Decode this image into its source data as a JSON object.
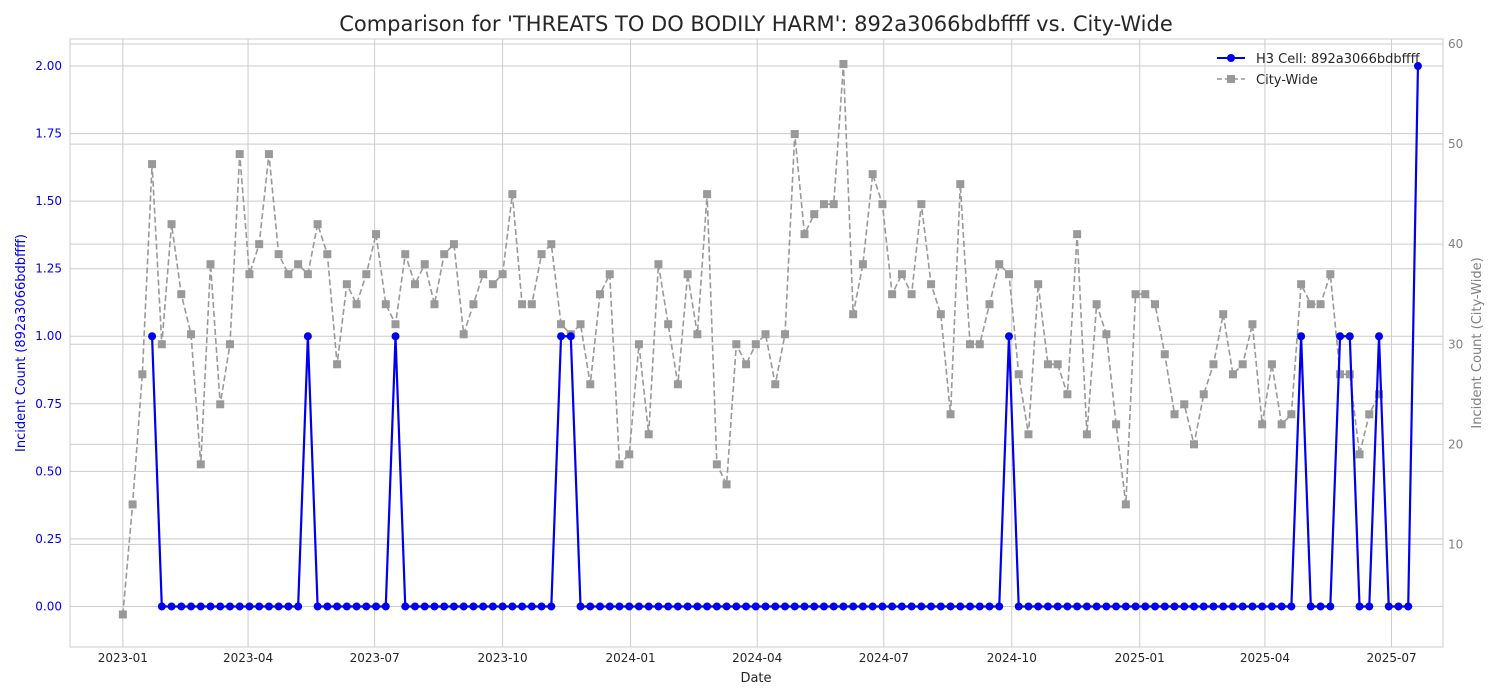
{
  "chart_data": {
    "type": "line",
    "title": "Comparison for 'THREATS TO DO BODILY HARM': 892a3066bdbffff vs. City-Wide",
    "xlabel": "Date",
    "ylabel_left": "Incident Count (892a3066bdbffff)",
    "ylabel_right": "Incident Count (City-Wide)",
    "x_start": "2023-01-01",
    "x_step": "week",
    "ylim_left": [
      -0.15,
      2.1
    ],
    "ylim_right": [
      -0.25,
      60.5
    ],
    "left_ticks": [
      "0.00",
      "0.25",
      "0.50",
      "0.75",
      "1.00",
      "1.25",
      "1.50",
      "1.75",
      "2.00"
    ],
    "right_ticks": [
      "10",
      "20",
      "30",
      "40",
      "50",
      "60"
    ],
    "x_ticks": [
      {
        "label": "2023-01",
        "date": "2023-01-01"
      },
      {
        "label": "2023-04",
        "date": "2023-04-01"
      },
      {
        "label": "2023-07",
        "date": "2023-07-01"
      },
      {
        "label": "2023-10",
        "date": "2023-10-01"
      },
      {
        "label": "2024-01",
        "date": "2024-01-01"
      },
      {
        "label": "2024-04",
        "date": "2024-04-01"
      },
      {
        "label": "2024-07",
        "date": "2024-07-01"
      },
      {
        "label": "2024-10",
        "date": "2024-10-01"
      },
      {
        "label": "2025-01",
        "date": "2025-01-01"
      },
      {
        "label": "2025-04",
        "date": "2025-04-01"
      },
      {
        "label": "2025-07",
        "date": "2025-07-01"
      }
    ],
    "grid": true,
    "legend_position": "top-right",
    "series": [
      {
        "name": "H3 Cell: 892a3066bdbffff",
        "axis": "left",
        "color": "#0000ee",
        "style": "solid",
        "marker": "circle",
        "start_week": 3,
        "values": [
          1,
          0,
          0,
          0,
          0,
          0,
          0,
          0,
          0,
          0,
          0,
          0,
          0,
          0,
          0,
          0,
          1,
          0,
          0,
          0,
          0,
          0,
          0,
          0,
          0,
          1,
          0,
          0,
          0,
          0,
          0,
          0,
          0,
          0,
          0,
          0,
          0,
          0,
          0,
          0,
          0,
          0,
          1,
          1,
          0,
          0,
          0,
          0,
          0,
          0,
          0,
          0,
          0,
          0,
          0,
          0,
          0,
          0,
          0,
          0,
          0,
          0,
          0,
          0,
          0,
          0,
          0,
          0,
          0,
          0,
          0,
          0,
          0,
          0,
          0,
          0,
          0,
          0,
          0,
          0,
          0,
          0,
          0,
          0,
          0,
          0,
          0,
          0,
          1,
          0,
          0,
          0,
          0,
          0,
          0,
          0,
          0,
          0,
          0,
          0,
          0,
          0,
          0,
          0,
          0,
          0,
          0,
          0,
          0,
          0,
          0,
          0,
          0,
          0,
          0,
          0,
          0,
          0,
          1,
          0,
          0,
          0,
          1,
          1,
          0,
          0,
          1,
          0,
          0,
          0,
          2
        ]
      },
      {
        "name": "City-Wide",
        "axis": "right",
        "color": "#999999",
        "style": "dashed",
        "marker": "square",
        "start_week": 0,
        "values": [
          3,
          14,
          27,
          48,
          30,
          42,
          35,
          31,
          18,
          38,
          24,
          30,
          49,
          37,
          40,
          49,
          39,
          37,
          38,
          37,
          42,
          39,
          28,
          36,
          34,
          37,
          41,
          34,
          32,
          39,
          36,
          38,
          34,
          39,
          40,
          31,
          34,
          37,
          36,
          37,
          45,
          34,
          34,
          39,
          40,
          32,
          31,
          32,
          26,
          35,
          37,
          18,
          19,
          30,
          21,
          38,
          32,
          26,
          37,
          31,
          45,
          18,
          16,
          30,
          28,
          30,
          31,
          26,
          31,
          51,
          41,
          43,
          44,
          44,
          58,
          33,
          38,
          47,
          44,
          35,
          37,
          35,
          44,
          36,
          33,
          23,
          46,
          30,
          30,
          34,
          38,
          37,
          27,
          21,
          36,
          28,
          28,
          25,
          41,
          21,
          34,
          31,
          22,
          14,
          35,
          35,
          34,
          29,
          23,
          24,
          20,
          25,
          28,
          33,
          27,
          28,
          32,
          22,
          28,
          22,
          23,
          36,
          34,
          34,
          37,
          27,
          27,
          19,
          23,
          25
        ]
      }
    ]
  }
}
